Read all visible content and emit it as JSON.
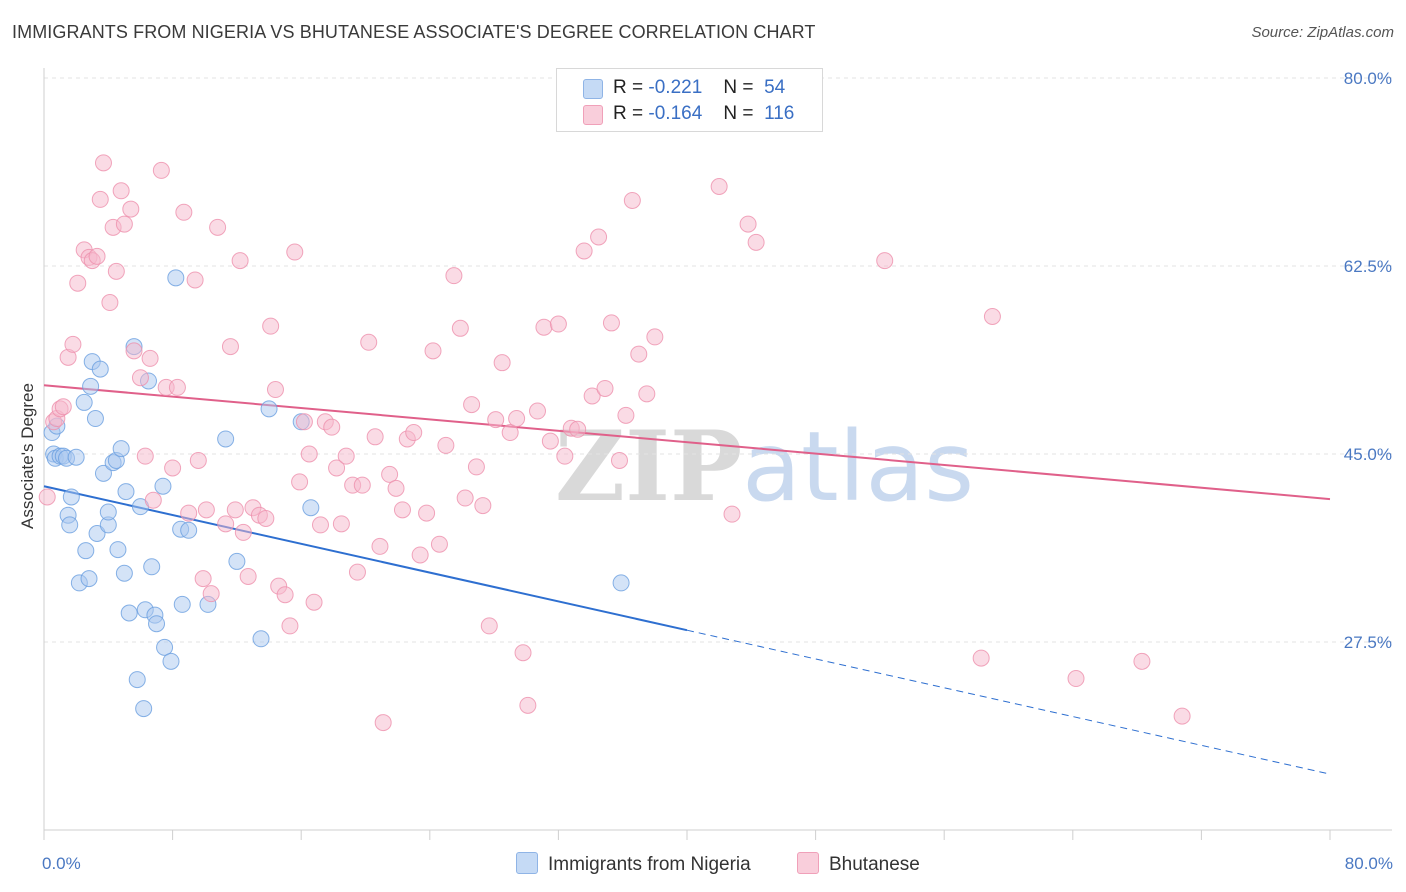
{
  "header": {
    "title": "IMMIGRANTS FROM NIGERIA VS BHUTANESE ASSOCIATE'S DEGREE CORRELATION CHART",
    "source": "Source: ZipAtlas.com"
  },
  "watermark": {
    "zip": "ZIP",
    "atlas": "atlas"
  },
  "legend": {
    "rows": [
      {
        "r_label": "R =",
        "r_value": "-0.221",
        "n_label": "N =",
        "n_value": "54",
        "color": "#a9c8f0"
      },
      {
        "r_label": "R =",
        "r_value": "-0.164",
        "n_label": "N =",
        "n_value": "116",
        "color": "#f5b8cb"
      }
    ]
  },
  "bottom_legend": {
    "items": [
      {
        "label": "Immigrants from Nigeria",
        "color": "#a9c8f0"
      },
      {
        "label": "Bhutanese",
        "color": "#f5b8cb"
      }
    ]
  },
  "chart_data": {
    "type": "scatter",
    "xlabel": "",
    "ylabel": "Associate's Degree",
    "xlim": [
      0,
      80
    ],
    "ylim": [
      10,
      80
    ],
    "x_tick_labels": [
      "0.0%",
      "80.0%"
    ],
    "y_ticks": [
      27.5,
      45.0,
      62.5,
      80.0
    ],
    "y_tick_labels": [
      "27.5%",
      "45.0%",
      "62.5%",
      "80.0%"
    ],
    "grid": true,
    "legend_position": "top-center",
    "series": [
      {
        "name": "Immigrants from Nigeria",
        "color": "#6a9fe0",
        "fill": "#a9c8f0",
        "trend": {
          "x0": 0,
          "y0": 42.0,
          "x1": 40,
          "y1": 28.6,
          "dash_to_x": 80,
          "dash_to_y": 15.2
        },
        "points": [
          [
            0.5,
            47.0
          ],
          [
            0.6,
            45.0
          ],
          [
            0.7,
            44.6
          ],
          [
            0.8,
            47.6
          ],
          [
            1.0,
            44.8
          ],
          [
            1.2,
            44.8
          ],
          [
            1.4,
            44.6
          ],
          [
            1.5,
            39.3
          ],
          [
            1.6,
            38.4
          ],
          [
            1.7,
            41.0
          ],
          [
            2.0,
            44.7
          ],
          [
            2.2,
            33.0
          ],
          [
            2.5,
            49.8
          ],
          [
            2.6,
            36.0
          ],
          [
            2.8,
            33.4
          ],
          [
            2.9,
            51.3
          ],
          [
            3.0,
            53.6
          ],
          [
            3.2,
            48.3
          ],
          [
            3.3,
            37.6
          ],
          [
            3.5,
            52.9
          ],
          [
            3.7,
            43.2
          ],
          [
            4.0,
            38.4
          ],
          [
            4.0,
            39.6
          ],
          [
            4.3,
            44.2
          ],
          [
            4.5,
            44.4
          ],
          [
            4.6,
            36.1
          ],
          [
            4.8,
            45.5
          ],
          [
            5.0,
            33.9
          ],
          [
            5.1,
            41.5
          ],
          [
            5.3,
            30.2
          ],
          [
            5.6,
            55.0
          ],
          [
            5.8,
            24.0
          ],
          [
            6.0,
            40.1
          ],
          [
            6.2,
            21.3
          ],
          [
            6.3,
            30.5
          ],
          [
            6.5,
            51.8
          ],
          [
            6.7,
            34.5
          ],
          [
            6.9,
            30.0
          ],
          [
            7.0,
            29.2
          ],
          [
            7.4,
            42.0
          ],
          [
            7.5,
            27.0
          ],
          [
            7.9,
            25.7
          ],
          [
            8.2,
            61.4
          ],
          [
            8.5,
            38.0
          ],
          [
            8.6,
            31.0
          ],
          [
            9.0,
            37.9
          ],
          [
            10.2,
            31.0
          ],
          [
            11.3,
            46.4
          ],
          [
            12.0,
            35.0
          ],
          [
            13.5,
            27.8
          ],
          [
            14.0,
            49.2
          ],
          [
            16.0,
            48.0
          ],
          [
            16.6,
            40.0
          ],
          [
            35.9,
            33.0
          ]
        ]
      },
      {
        "name": "Bhutanese",
        "color": "#ee90ad",
        "fill": "#f5b8cb",
        "trend": {
          "x0": 0,
          "y0": 51.4,
          "x1": 80,
          "y1": 40.8
        },
        "points": [
          [
            0.2,
            41.0
          ],
          [
            0.6,
            48.0
          ],
          [
            0.8,
            48.3
          ],
          [
            1.0,
            49.2
          ],
          [
            1.2,
            49.4
          ],
          [
            1.5,
            54.0
          ],
          [
            1.8,
            55.2
          ],
          [
            2.1,
            60.9
          ],
          [
            2.5,
            64.0
          ],
          [
            2.8,
            63.3
          ],
          [
            3.0,
            63.0
          ],
          [
            3.3,
            63.4
          ],
          [
            3.5,
            68.7
          ],
          [
            3.7,
            72.1
          ],
          [
            4.1,
            59.1
          ],
          [
            4.3,
            66.1
          ],
          [
            4.5,
            62.0
          ],
          [
            4.8,
            69.5
          ],
          [
            5.0,
            66.4
          ],
          [
            5.4,
            67.8
          ],
          [
            5.6,
            54.6
          ],
          [
            6.0,
            52.1
          ],
          [
            6.3,
            44.8
          ],
          [
            6.6,
            53.9
          ],
          [
            6.8,
            40.7
          ],
          [
            7.3,
            71.4
          ],
          [
            7.6,
            51.2
          ],
          [
            8.0,
            43.7
          ],
          [
            8.3,
            51.2
          ],
          [
            8.7,
            67.5
          ],
          [
            9.0,
            39.5
          ],
          [
            9.4,
            61.2
          ],
          [
            9.6,
            44.4
          ],
          [
            9.9,
            33.4
          ],
          [
            10.1,
            39.8
          ],
          [
            10.4,
            32.0
          ],
          [
            10.8,
            66.1
          ],
          [
            11.3,
            38.5
          ],
          [
            11.6,
            55.0
          ],
          [
            11.9,
            39.8
          ],
          [
            12.2,
            63.0
          ],
          [
            12.4,
            37.7
          ],
          [
            12.7,
            33.6
          ],
          [
            13.0,
            40.0
          ],
          [
            13.4,
            39.3
          ],
          [
            13.8,
            39.0
          ],
          [
            14.1,
            56.9
          ],
          [
            14.4,
            51.0
          ],
          [
            14.6,
            32.7
          ],
          [
            15.0,
            31.9
          ],
          [
            15.3,
            29.0
          ],
          [
            15.6,
            63.8
          ],
          [
            15.9,
            42.4
          ],
          [
            16.2,
            48.0
          ],
          [
            16.5,
            45.0
          ],
          [
            16.8,
            31.2
          ],
          [
            17.2,
            38.4
          ],
          [
            17.5,
            48.0
          ],
          [
            17.9,
            47.5
          ],
          [
            18.2,
            43.7
          ],
          [
            18.5,
            38.5
          ],
          [
            18.8,
            44.8
          ],
          [
            19.2,
            42.1
          ],
          [
            19.5,
            34.0
          ],
          [
            19.8,
            42.1
          ],
          [
            20.2,
            55.4
          ],
          [
            20.6,
            46.6
          ],
          [
            20.9,
            36.4
          ],
          [
            21.1,
            20.0
          ],
          [
            21.5,
            43.1
          ],
          [
            21.9,
            41.8
          ],
          [
            22.3,
            39.8
          ],
          [
            22.6,
            46.4
          ],
          [
            23.0,
            47.0
          ],
          [
            23.4,
            35.6
          ],
          [
            23.8,
            39.5
          ],
          [
            24.2,
            54.6
          ],
          [
            24.6,
            36.6
          ],
          [
            25.0,
            45.8
          ],
          [
            25.5,
            61.6
          ],
          [
            25.9,
            56.7
          ],
          [
            26.2,
            40.9
          ],
          [
            26.6,
            49.6
          ],
          [
            26.9,
            43.8
          ],
          [
            27.3,
            40.2
          ],
          [
            27.7,
            29.0
          ],
          [
            28.1,
            48.2
          ],
          [
            28.5,
            53.5
          ],
          [
            29.0,
            47.0
          ],
          [
            29.4,
            48.3
          ],
          [
            29.8,
            26.5
          ],
          [
            30.1,
            21.6
          ],
          [
            30.7,
            49.0
          ],
          [
            31.1,
            56.8
          ],
          [
            31.5,
            46.2
          ],
          [
            32.0,
            57.1
          ],
          [
            32.4,
            44.8
          ],
          [
            32.8,
            47.4
          ],
          [
            33.2,
            47.3
          ],
          [
            33.6,
            63.9
          ],
          [
            34.1,
            50.4
          ],
          [
            34.5,
            65.2
          ],
          [
            34.9,
            51.1
          ],
          [
            35.3,
            57.2
          ],
          [
            35.8,
            44.4
          ],
          [
            36.2,
            48.6
          ],
          [
            36.6,
            68.6
          ],
          [
            37.0,
            54.3
          ],
          [
            37.5,
            50.6
          ],
          [
            38.0,
            55.9
          ],
          [
            42.0,
            69.9
          ],
          [
            42.8,
            39.4
          ],
          [
            43.8,
            66.4
          ],
          [
            44.3,
            64.7
          ],
          [
            52.3,
            63.0
          ],
          [
            58.3,
            26.0
          ],
          [
            59.0,
            57.8
          ],
          [
            64.2,
            24.1
          ],
          [
            68.3,
            25.7
          ],
          [
            70.8,
            20.6
          ]
        ]
      }
    ]
  }
}
